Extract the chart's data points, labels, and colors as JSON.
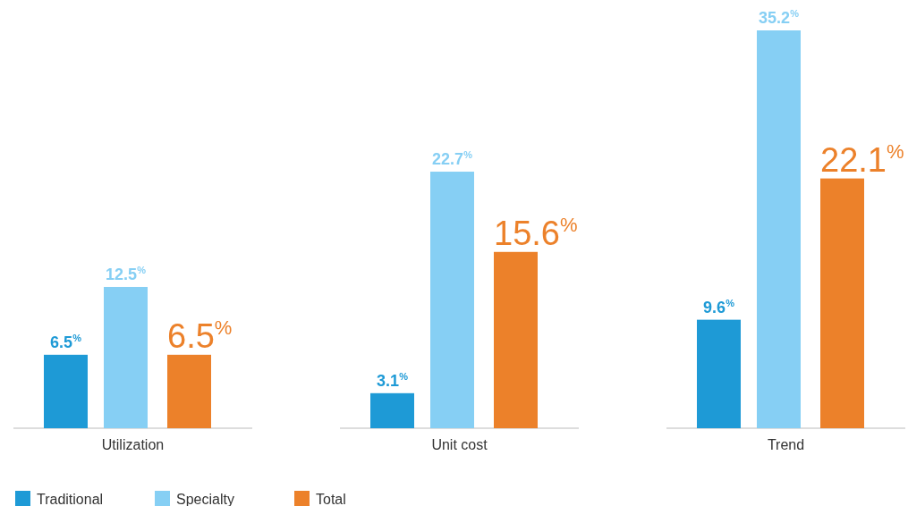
{
  "chart_data": {
    "type": "bar",
    "categories": [
      "Utilization",
      "Unit cost",
      "Trend"
    ],
    "series": [
      {
        "name": "Traditional",
        "color": "#1e9ad6",
        "values": [
          6.5,
          3.1,
          9.6
        ],
        "value_labels": [
          "6.5$^{%}$",
          "3.1$^{%}$",
          "9.6$^{%}$"
        ]
      },
      {
        "name": "Specialty",
        "color": "#86cff4",
        "values": [
          12.5,
          22.7,
          35.2
        ],
        "value_labels": [
          "12.5$^{%}$",
          "22.7$^{%}$",
          "35.2$^{%}$"
        ]
      },
      {
        "name": "Total",
        "color": "#ec812a",
        "values": [
          6.5,
          15.6,
          22.1
        ],
        "value_labels": [
          "6.5$^{%}$",
          "15.6$^{%}$",
          "22.1$^{%}$"
        ]
      }
    ],
    "legend": "bottom left"
  }
}
